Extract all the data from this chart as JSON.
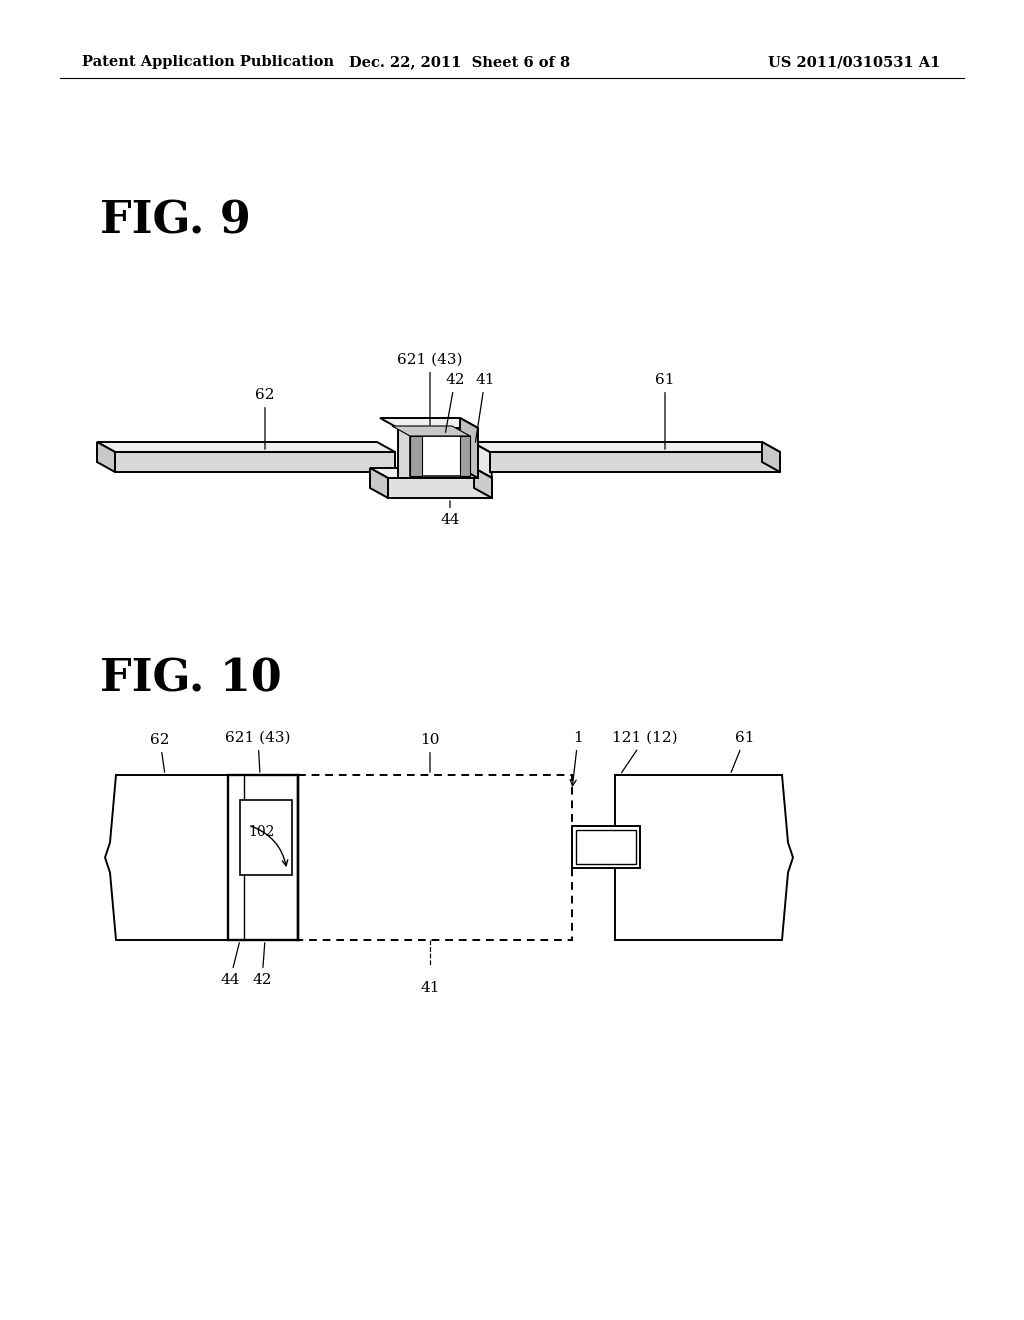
{
  "background_color": "#ffffff",
  "header_left": "Patent Application Publication",
  "header_center": "Dec. 22, 2011  Sheet 6 of 8",
  "header_right": "US 2011/0310531 A1",
  "fig9_label": "FIG. 9",
  "fig10_label": "FIG. 10"
}
